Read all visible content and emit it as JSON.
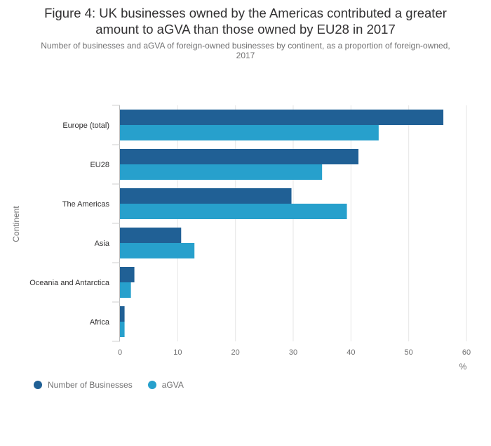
{
  "header": {
    "title_line1": "Figure 4: UK businesses owned by the Americas contributed a greater",
    "title_line2": "amount to aGVA than those owned by EU28 in 2017",
    "subtitle_line1": "Number of businesses and aGVA of foreign-owned businesses by continent, as a proportion of foreign-owned,",
    "subtitle_line2": "2017"
  },
  "chart_data": {
    "type": "bar",
    "orientation": "horizontal",
    "title": "Figure 4: UK businesses owned by the Americas contributed a greater amount to aGVA than those owned by EU28 in 2017",
    "subtitle": "Number of businesses and aGVA of foreign-owned businesses by continent, as a proportion of foreign-owned, 2017",
    "categories": [
      "Europe (total)",
      "EU28",
      "The Americas",
      "Asia",
      "Oceania and Antarctica",
      "Africa"
    ],
    "series": [
      {
        "name": "Number of Businesses",
        "color": "#206095",
        "values": [
          56.0,
          41.3,
          29.7,
          10.6,
          2.5,
          0.8
        ]
      },
      {
        "name": "aGVA",
        "color": "#27a0cc",
        "values": [
          44.8,
          35.0,
          39.3,
          12.9,
          1.9,
          0.8
        ]
      }
    ],
    "xlabel": "%",
    "ylabel": "Continent",
    "xlim": [
      0,
      60
    ],
    "xticks": [
      "0",
      "10",
      "20",
      "30",
      "40",
      "50",
      "60"
    ],
    "grid": true,
    "legend_position": "bottom-left"
  }
}
